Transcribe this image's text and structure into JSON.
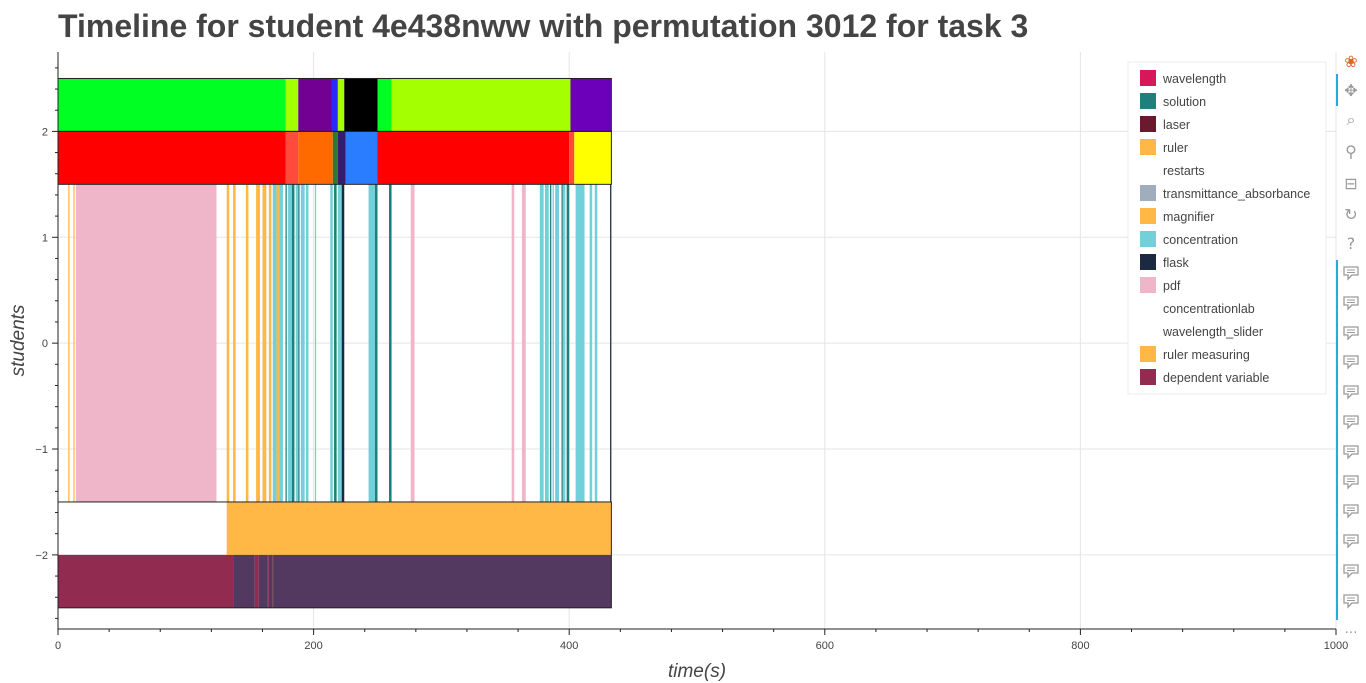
{
  "chart_data": {
    "type": "timeline",
    "title": "Timeline for student 4e438nww with permutation 3012 for task 3",
    "xlabel": "time(s)",
    "ylabel": "students",
    "xlim": [
      0,
      1000
    ],
    "ylim": [
      -2.7,
      2.75
    ],
    "xticks": [
      0,
      200,
      400,
      600,
      800,
      1000
    ],
    "yticks": [
      -2,
      -1,
      0,
      1,
      2
    ],
    "ytick_labels": [
      "−2",
      "−1",
      "0",
      "1",
      "2"
    ],
    "grid": true,
    "legend_position": "top-right",
    "legend": [
      {
        "label": "wavelength",
        "color": "#d6185a"
      },
      {
        "label": "solution",
        "color": "#1f7f7a"
      },
      {
        "label": "laser",
        "color": "#6b1a2d"
      },
      {
        "label": "ruler",
        "color": "#ffb845"
      },
      {
        "label": "restarts",
        "color": "#ffffff"
      },
      {
        "label": "transmittance_absorbance",
        "color": "#9fadbd"
      },
      {
        "label": "magnifier",
        "color": "#ffb845"
      },
      {
        "label": "concentration",
        "color": "#72d0db"
      },
      {
        "label": "flask",
        "color": "#1b2a40"
      },
      {
        "label": "pdf",
        "color": "#efb6c9"
      },
      {
        "label": "concentrationlab",
        "color": "#ffffff"
      },
      {
        "label": "wavelength_slider",
        "color": "#ffffff"
      },
      {
        "label": "ruler measuring",
        "color": "#ffb845"
      },
      {
        "label": "dependent variable",
        "color": "#922b50"
      }
    ],
    "rows": [
      {
        "y0": 2,
        "y1": 2.5,
        "segments": [
          [
            0,
            178,
            "#00ff22"
          ],
          [
            178,
            188,
            "#a4ff00"
          ],
          [
            188,
            214,
            "#720092"
          ],
          [
            214,
            219,
            "#2a2aff"
          ],
          [
            219,
            224,
            "#a4ff00"
          ],
          [
            224,
            250,
            "#000000"
          ],
          [
            250,
            261,
            "#00ff22"
          ],
          [
            261,
            401,
            "#a4ff00"
          ],
          [
            401,
            433,
            "#6c00ba"
          ]
        ]
      },
      {
        "y0": 1.5,
        "y1": 2,
        "segments": [
          [
            0,
            178,
            "#ff0000"
          ],
          [
            178,
            188,
            "#ff4b3b"
          ],
          [
            188,
            215,
            "#ff6a00"
          ],
          [
            215,
            219,
            "#2c7a2c"
          ],
          [
            219,
            225,
            "#3a1a6a"
          ],
          [
            225,
            250,
            "#2a7dff"
          ],
          [
            250,
            400,
            "#ff0000"
          ],
          [
            400,
            404,
            "#ff4b3b"
          ],
          [
            404,
            433,
            "#ffff00"
          ]
        ]
      },
      {
        "y0": -1.5,
        "y1": 1.5,
        "segments": [
          [
            8,
            9,
            "#ffb845"
          ],
          [
            12,
            13,
            "#ffb845"
          ],
          [
            14,
            124,
            "#efb6c9"
          ],
          [
            132,
            134,
            "#ffb845"
          ],
          [
            137,
            139,
            "#ffb845"
          ],
          [
            147,
            149,
            "#ffb845"
          ],
          [
            155,
            158,
            "#ffb845"
          ],
          [
            160,
            163,
            "#ffb845"
          ],
          [
            165,
            167,
            "#ffb845"
          ],
          [
            168,
            171,
            "#72d0db"
          ],
          [
            171,
            173,
            "#ffb845"
          ],
          [
            173,
            176,
            "#72d0db"
          ],
          [
            178,
            179,
            "#1f7f7a"
          ],
          [
            180,
            183,
            "#72d0db"
          ],
          [
            183,
            185,
            "#1f7f7a"
          ],
          [
            186,
            188,
            "#72d0db"
          ],
          [
            188,
            189,
            "#1f7f7a"
          ],
          [
            190,
            193,
            "#72d0db"
          ],
          [
            194,
            196,
            "#72d0db"
          ],
          [
            201,
            202,
            "#72d0db"
          ],
          [
            213,
            215,
            "#72d0db"
          ],
          [
            216,
            218,
            "#1f7f7a"
          ],
          [
            219,
            222,
            "#72d0db"
          ],
          [
            222,
            224,
            "#1b2a40"
          ],
          [
            243,
            248,
            "#72d0db"
          ],
          [
            248,
            250,
            "#1f7f7a"
          ],
          [
            259,
            261,
            "#1f7f7a"
          ],
          [
            276,
            279,
            "#efb6c9"
          ],
          [
            355,
            357,
            "#efb6c9"
          ],
          [
            363,
            366,
            "#efb6c9"
          ],
          [
            377,
            380,
            "#72d0db"
          ],
          [
            381,
            384,
            "#72d0db"
          ],
          [
            385,
            386,
            "#1f7f7a"
          ],
          [
            387,
            388,
            "#72d0db"
          ],
          [
            389,
            392,
            "#72d0db"
          ],
          [
            394,
            395,
            "#1f7f7a"
          ],
          [
            395,
            397,
            "#72d0db"
          ],
          [
            398,
            400,
            "#1f7f7a"
          ],
          [
            405,
            412,
            "#72d0db"
          ],
          [
            416,
            418,
            "#72d0db"
          ],
          [
            420,
            422,
            "#72d0db"
          ],
          [
            432,
            433,
            "#1b2a40"
          ]
        ]
      },
      {
        "y0": -2,
        "y1": -1.5,
        "segments": [
          [
            132,
            433,
            "#ffb845"
          ]
        ]
      },
      {
        "y0": -2.5,
        "y1": -2,
        "segments": [
          [
            0,
            137,
            "#922b50"
          ],
          [
            137,
            154,
            "#533860"
          ],
          [
            154,
            157,
            "#922b50"
          ],
          [
            157,
            164,
            "#533860"
          ],
          [
            164,
            165,
            "#922b50"
          ],
          [
            165,
            168,
            "#533860"
          ],
          [
            168,
            169,
            "#922b50"
          ],
          [
            169,
            433,
            "#533860"
          ]
        ]
      }
    ],
    "outlines": [
      [
        0,
        433,
        2,
        2.5
      ],
      [
        0,
        433,
        1.5,
        2
      ],
      [
        0,
        433,
        -2.5,
        -1.5
      ]
    ]
  },
  "toolbar": {
    "tools": [
      {
        "name": "bokeh-logo-icon",
        "glyph": "❀",
        "color": "#e0662c"
      },
      {
        "name": "pan-tool-icon",
        "glyph": "✥",
        "color": "#9a9a9a"
      },
      {
        "name": "box-zoom-tool-icon",
        "glyph": "⌕",
        "color": "#9a9a9a"
      },
      {
        "name": "wheel-zoom-tool-icon",
        "glyph": "⚲",
        "color": "#9a9a9a"
      },
      {
        "name": "save-tool-icon",
        "glyph": "⊟",
        "color": "#9a9a9a"
      },
      {
        "name": "reset-tool-icon",
        "glyph": "↻",
        "color": "#9a9a9a"
      },
      {
        "name": "help-tool-icon",
        "glyph": "?",
        "color": "#9a9a9a"
      }
    ],
    "hover_tool_count": 12,
    "more_label": "…"
  }
}
